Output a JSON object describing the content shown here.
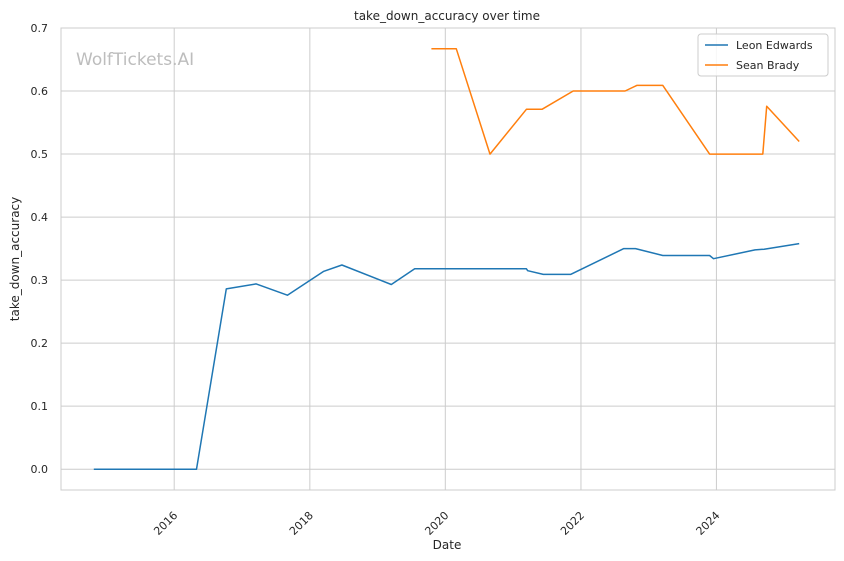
{
  "chart_data": {
    "type": "line",
    "title": "take_down_accuracy over time",
    "xlabel": "Date",
    "ylabel": "take_down_accuracy",
    "watermark": "WolfTickets.AI",
    "x_ticks": [
      "2016",
      "2018",
      "2020",
      "2022",
      "2024"
    ],
    "y_ticks": [
      "0.0",
      "0.1",
      "0.2",
      "0.3",
      "0.4",
      "0.5",
      "0.6",
      "0.7"
    ],
    "xlim": [
      "2014-05-01",
      "2025-10-01"
    ],
    "ylim": [
      -0.033,
      0.7
    ],
    "grid": true,
    "legend_position": "top-right",
    "series": [
      {
        "name": "Leon Edwards",
        "color": "#1f77b4",
        "points": [
          [
            "2014-10-25",
            0.0
          ],
          [
            "2016-04-30",
            0.0
          ],
          [
            "2016-10-08",
            0.286
          ],
          [
            "2017-03-18",
            0.294
          ],
          [
            "2017-09-02",
            0.276
          ],
          [
            "2018-03-17",
            0.314
          ],
          [
            "2018-06-23",
            0.324
          ],
          [
            "2019-03-16",
            0.293
          ],
          [
            "2019-07-20",
            0.318
          ],
          [
            "2021-03-13",
            0.318
          ],
          [
            "2021-03-20",
            0.315
          ],
          [
            "2021-06-12",
            0.309
          ],
          [
            "2021-11-06",
            0.309
          ],
          [
            "2022-08-20",
            0.35
          ],
          [
            "2022-10-22",
            0.35
          ],
          [
            "2023-03-18",
            0.339
          ],
          [
            "2023-11-25",
            0.339
          ],
          [
            "2023-12-16",
            0.334
          ],
          [
            "2024-07-27",
            0.348
          ],
          [
            "2024-09-14",
            0.349
          ],
          [
            "2025-03-22",
            0.358
          ]
        ]
      },
      {
        "name": "Sean Brady",
        "color": "#ff7f0e",
        "points": [
          [
            "2019-10-18",
            0.667
          ],
          [
            "2020-02-29",
            0.667
          ],
          [
            "2020-08-29",
            0.5
          ],
          [
            "2021-03-13",
            0.571
          ],
          [
            "2021-06-05",
            0.571
          ],
          [
            "2021-11-20",
            0.6
          ],
          [
            "2022-08-27",
            0.6
          ],
          [
            "2022-10-29",
            0.609
          ],
          [
            "2023-03-18",
            0.609
          ],
          [
            "2023-11-25",
            0.5
          ],
          [
            "2024-09-07",
            0.5
          ],
          [
            "2024-09-28",
            0.576
          ],
          [
            "2025-03-22",
            0.52
          ]
        ]
      }
    ]
  }
}
